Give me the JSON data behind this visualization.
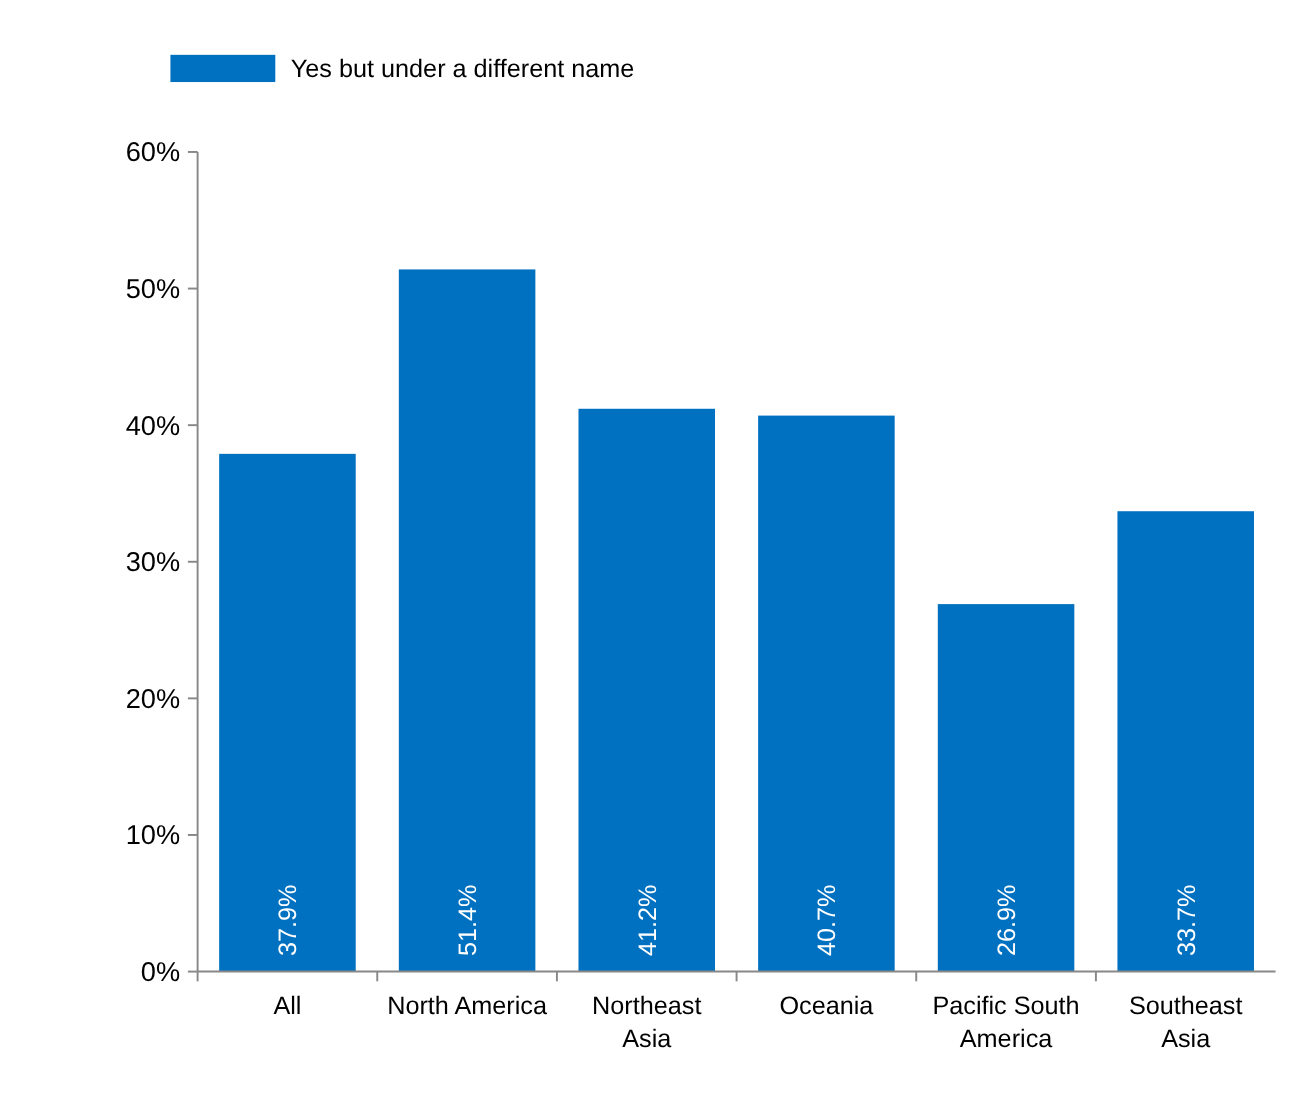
{
  "chart_data": {
    "type": "bar",
    "categories": [
      "All",
      "North America",
      "Northeast Asia",
      "Oceania",
      "Pacific South America",
      "Southeast Asia"
    ],
    "series": [
      {
        "name": "Yes but under a different name",
        "color": "#0070c0",
        "values": [
          37.9,
          51.4,
          41.2,
          40.7,
          26.9,
          33.7
        ],
        "value_labels": [
          "37.9%",
          "51.4%",
          "41.2%",
          "40.7%",
          "26.9%",
          "33.7%"
        ]
      }
    ],
    "ylim": [
      0,
      60
    ],
    "yticks": [
      {
        "value": 0,
        "label": "0%"
      },
      {
        "value": 10,
        "label": "10%"
      },
      {
        "value": 20,
        "label": "20%"
      },
      {
        "value": 30,
        "label": "30%"
      },
      {
        "value": 40,
        "label": "40%"
      },
      {
        "value": 50,
        "label": "50%"
      },
      {
        "value": 60,
        "label": "60%"
      }
    ],
    "legend": "top left",
    "grid": false
  }
}
